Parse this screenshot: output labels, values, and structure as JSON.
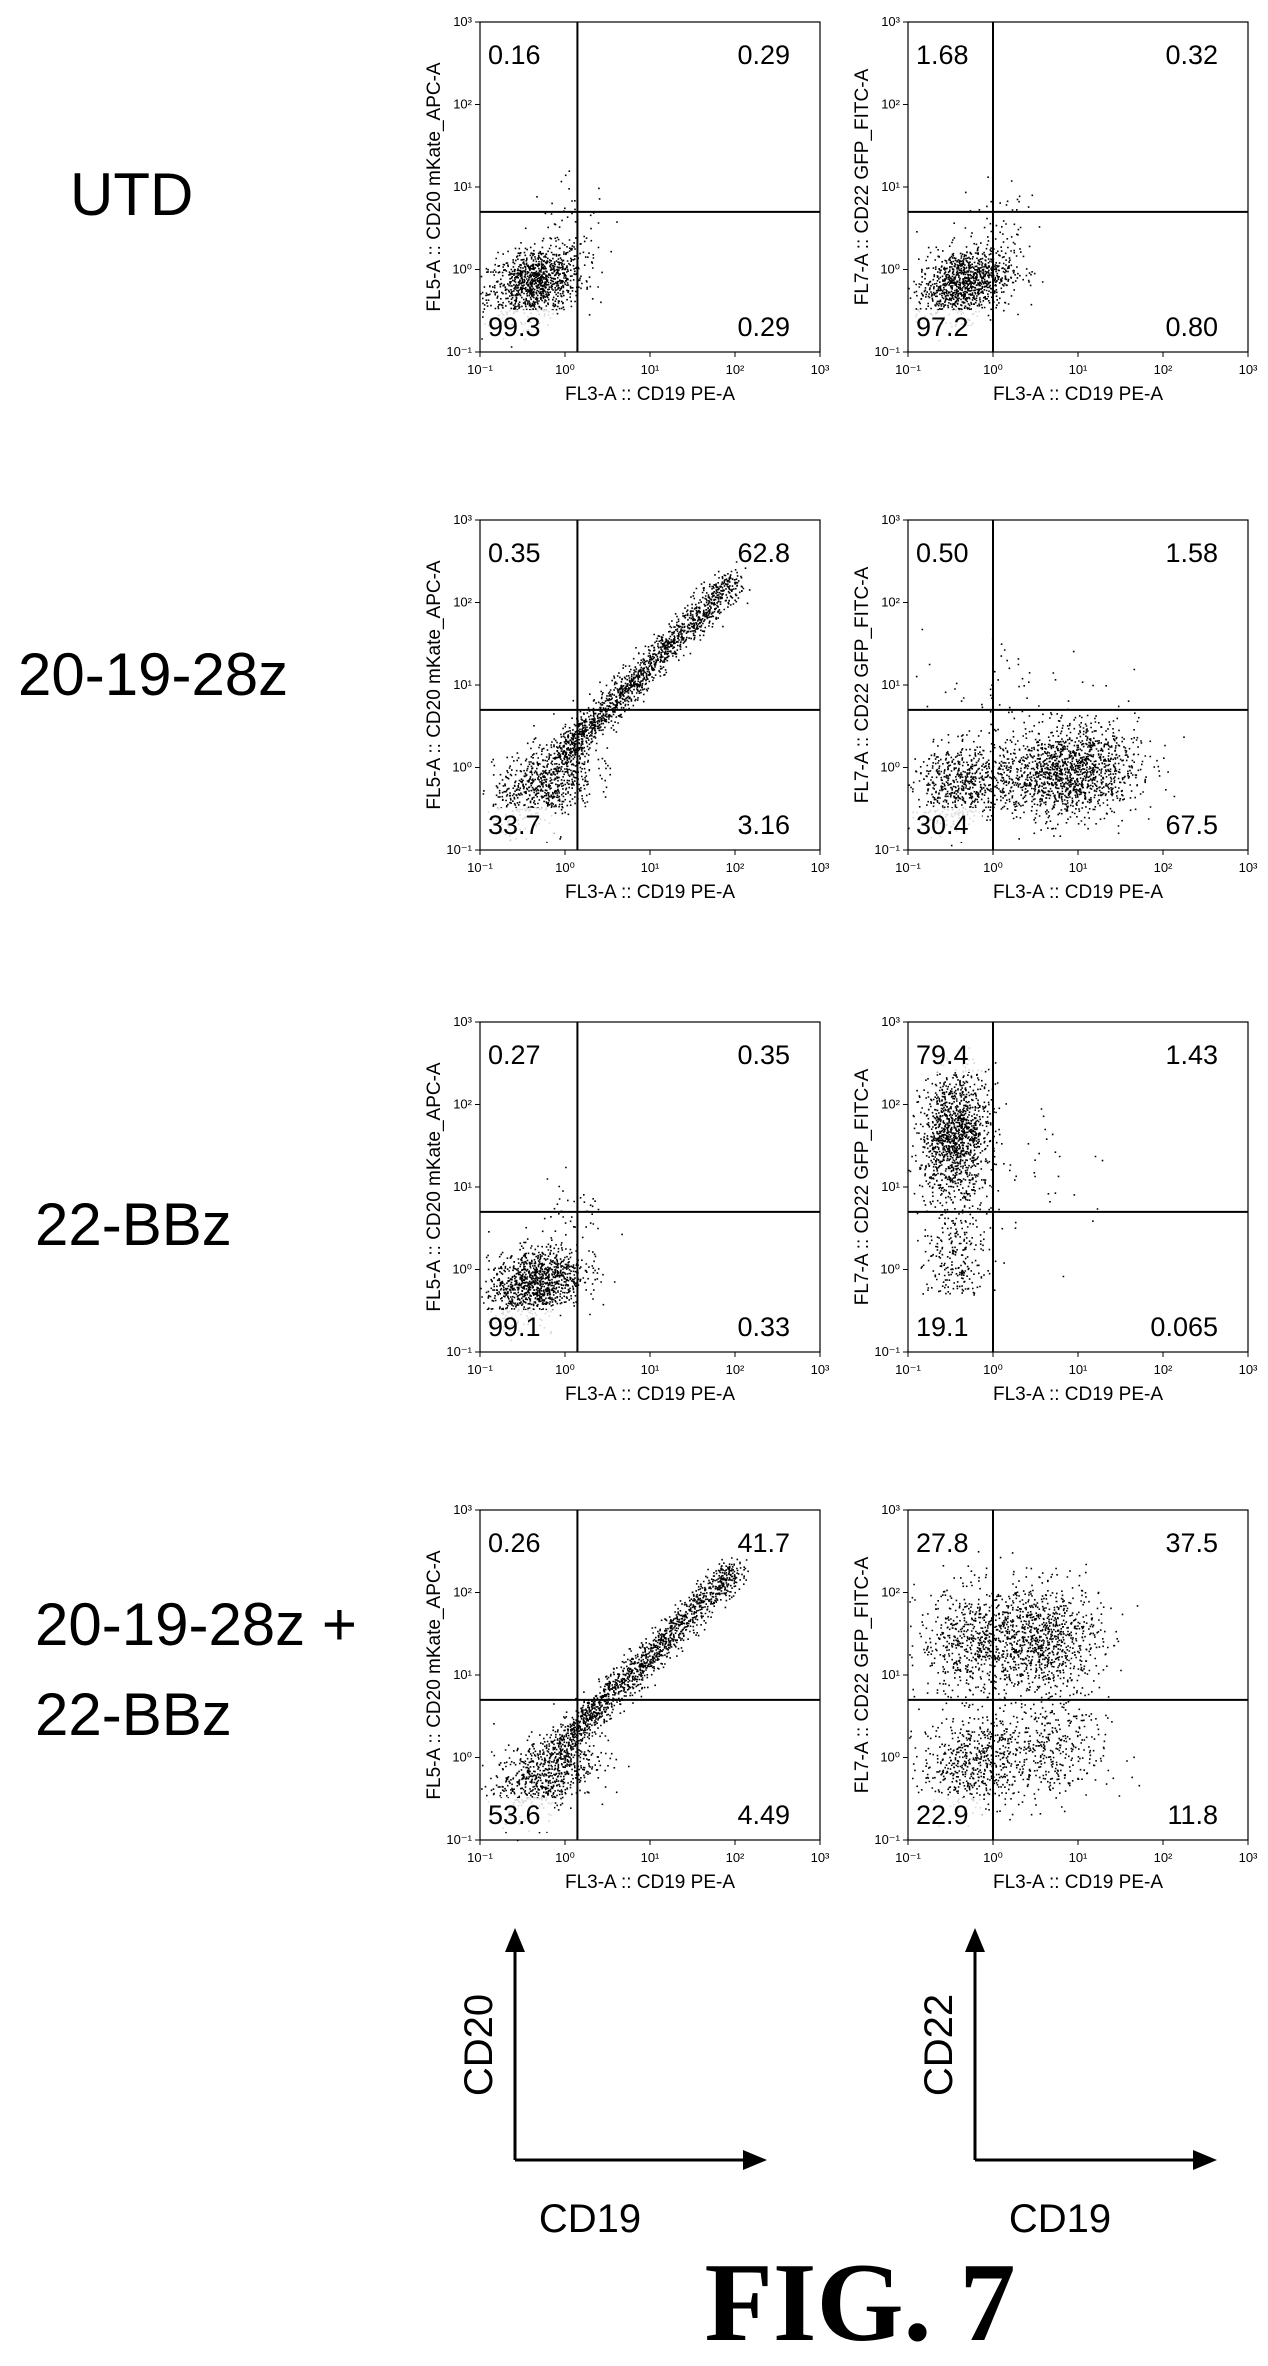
{
  "figure_label": "FIG. 7",
  "key": {
    "left": {
      "y_label": "CD20",
      "x_label": "CD19"
    },
    "right": {
      "y_label": "CD22",
      "x_label": "CD19"
    }
  },
  "tick_labels": [
    "10⁻¹",
    "10⁰",
    "10¹",
    "10²",
    "10³"
  ],
  "chart_data": [
    {
      "type": "scatter",
      "row": "UTD",
      "panel": "left",
      "xlabel": "FL3-A :: CD19 PE-A",
      "ylabel": "FL5-A :: CD20 mKate_APC-A",
      "scale": "log",
      "xlim": [
        0.1,
        1000
      ],
      "ylim": [
        0.1,
        1000
      ],
      "gate": {
        "x": 1.4,
        "y": 5
      },
      "quadrants": {
        "upper_left": "0.16",
        "upper_right": "0.29",
        "lower_left": "99.3",
        "lower_right": "0.29"
      },
      "population": "negative"
    },
    {
      "type": "scatter",
      "row": "UTD",
      "panel": "right",
      "xlabel": "FL3-A :: CD19 PE-A",
      "ylabel": "FL7-A :: CD22 GFP_FITC-A",
      "scale": "log",
      "xlim": [
        0.1,
        1000
      ],
      "ylim": [
        0.1,
        1000
      ],
      "gate": {
        "x": 1.0,
        "y": 5
      },
      "quadrants": {
        "upper_left": "1.68",
        "upper_right": "0.32",
        "lower_left": "97.2",
        "lower_right": "0.80"
      },
      "population": "negative"
    },
    {
      "type": "scatter",
      "row": "20-19-28z",
      "panel": "left",
      "xlabel": "FL3-A :: CD19 PE-A",
      "ylabel": "FL5-A :: CD20 mKate_APC-A",
      "scale": "log",
      "xlim": [
        0.1,
        1000
      ],
      "ylim": [
        0.1,
        1000
      ],
      "gate": {
        "x": 1.4,
        "y": 5
      },
      "quadrants": {
        "upper_left": "0.35",
        "upper_right": "62.8",
        "lower_left": "33.7",
        "lower_right": "3.16"
      },
      "population": "diagonal"
    },
    {
      "type": "scatter",
      "row": "20-19-28z",
      "panel": "right",
      "xlabel": "FL3-A :: CD19 PE-A",
      "ylabel": "FL7-A :: CD22 GFP_FITC-A",
      "scale": "log",
      "xlim": [
        0.1,
        1000
      ],
      "ylim": [
        0.1,
        1000
      ],
      "gate": {
        "x": 1.0,
        "y": 5
      },
      "quadrants": {
        "upper_left": "0.50",
        "upper_right": "1.58",
        "lower_left": "30.4",
        "lower_right": "67.5"
      },
      "population": "cd19_shift"
    },
    {
      "type": "scatter",
      "row": "22-BBz",
      "panel": "left",
      "xlabel": "FL3-A :: CD19 PE-A",
      "ylabel": "FL5-A :: CD20 mKate_APC-A",
      "scale": "log",
      "xlim": [
        0.1,
        1000
      ],
      "ylim": [
        0.1,
        1000
      ],
      "gate": {
        "x": 1.4,
        "y": 5
      },
      "quadrants": {
        "upper_left": "0.27",
        "upper_right": "0.35",
        "lower_left": "99.1",
        "lower_right": "0.33"
      },
      "population": "negative"
    },
    {
      "type": "scatter",
      "row": "22-BBz",
      "panel": "right",
      "xlabel": "FL3-A :: CD19 PE-A",
      "ylabel": "FL7-A :: CD22 GFP_FITC-A",
      "scale": "log",
      "xlim": [
        0.1,
        1000
      ],
      "ylim": [
        0.1,
        1000
      ],
      "gate": {
        "x": 1.0,
        "y": 5
      },
      "quadrants": {
        "upper_left": "79.4",
        "upper_right": "1.43",
        "lower_left": "19.1",
        "lower_right": "0.065"
      },
      "population": "cd22_high"
    },
    {
      "type": "scatter",
      "row": "20-19-28z + 22-BBz",
      "panel": "left",
      "xlabel": "FL3-A :: CD19 PE-A",
      "ylabel": "FL5-A :: CD20 mKate_APC-A",
      "scale": "log",
      "xlim": [
        0.1,
        1000
      ],
      "ylim": [
        0.1,
        1000
      ],
      "gate": {
        "x": 1.4,
        "y": 5
      },
      "quadrants": {
        "upper_left": "0.26",
        "upper_right": "41.7",
        "lower_left": "53.6",
        "lower_right": "4.49"
      },
      "population": "diagonal"
    },
    {
      "type": "scatter",
      "row": "20-19-28z + 22-BBz",
      "panel": "right",
      "xlabel": "FL3-A :: CD19 PE-A",
      "ylabel": "FL7-A :: CD22 GFP_FITC-A",
      "scale": "log",
      "xlim": [
        0.1,
        1000
      ],
      "ylim": [
        0.1,
        1000
      ],
      "gate": {
        "x": 1.0,
        "y": 5
      },
      "quadrants": {
        "upper_left": "27.8",
        "upper_right": "37.5",
        "lower_left": "22.9",
        "lower_right": "11.8"
      },
      "population": "four_clusters"
    }
  ],
  "rows": [
    {
      "label_lines": [
        "UTD"
      ]
    },
    {
      "label_lines": [
        "20-19-28z"
      ]
    },
    {
      "label_lines": [
        "22-BBz"
      ]
    },
    {
      "label_lines": [
        "20-19-28z +",
        "22-BBz"
      ]
    }
  ]
}
